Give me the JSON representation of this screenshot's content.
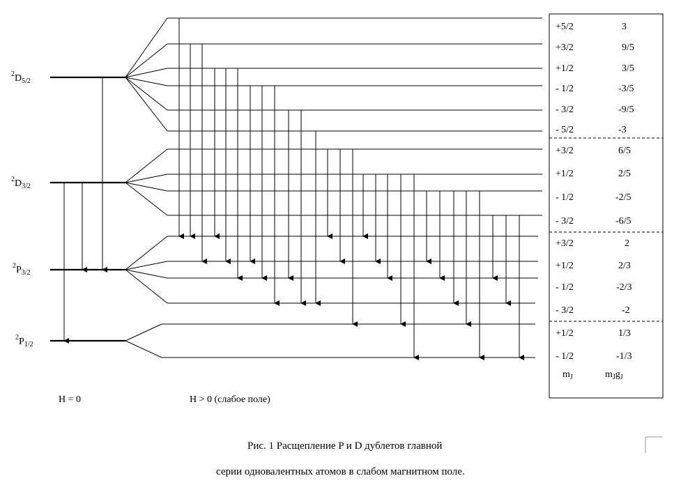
{
  "levels": [
    {
      "id": "D52",
      "pre": "2",
      "main": "D",
      "sub": "5/2"
    },
    {
      "id": "D32",
      "pre": "2",
      "main": "D",
      "sub": "3/2"
    },
    {
      "id": "P32",
      "pre": "2",
      "main": "P",
      "sub": "3/2"
    },
    {
      "id": "P12",
      "pre": "2",
      "main": "P",
      "sub": "1/2"
    }
  ],
  "sublevels": {
    "D52": [
      {
        "mJ": "+5/2",
        "mJgJ": "3"
      },
      {
        "mJ": "+3/2",
        "mJgJ": "9/5"
      },
      {
        "mJ": "+1/2",
        "mJgJ": "3/5"
      },
      {
        "mJ": "- 1/2",
        "mJgJ": "-3/5"
      },
      {
        "mJ": "- 3/2",
        "mJgJ": "-9/5"
      },
      {
        "mJ": "- 5/2",
        "mJgJ": "-3"
      }
    ],
    "D32": [
      {
        "mJ": "+3/2",
        "mJgJ": "6/5"
      },
      {
        "mJ": "+1/2",
        "mJgJ": "2/5"
      },
      {
        "mJ": "- 1/2",
        "mJgJ": "-2/5"
      },
      {
        "mJ": "- 3/2",
        "mJgJ": "-6/5"
      }
    ],
    "P32": [
      {
        "mJ": "+3/2",
        "mJgJ": "2"
      },
      {
        "mJ": "+1/2",
        "mJgJ": "2/3"
      },
      {
        "mJ": "- 1/2",
        "mJgJ": "-2/3"
      },
      {
        "mJ": "- 3/2",
        "mJgJ": "-2"
      }
    ],
    "P12": [
      {
        "mJ": "+1/2",
        "mJgJ": "1/3"
      },
      {
        "mJ": "- 1/2",
        "mJgJ": "-1/3"
      }
    ]
  },
  "table_footer": {
    "mJ": "m",
    "mJ_sub": "J",
    "mJgJ_m": "m",
    "mJgJ_sub1": "J",
    "mJgJ_g": "g",
    "mJgJ_sub2": "J"
  },
  "axis_labels": {
    "zero_field": "H = 0",
    "weak_field": "H > 0 (слабое поле)"
  },
  "caption": {
    "line1": "Рис. 1  Расщепление P и D дублетов главной",
    "line2": "серии одновалентных атомов в слабом магнитном поле."
  }
}
